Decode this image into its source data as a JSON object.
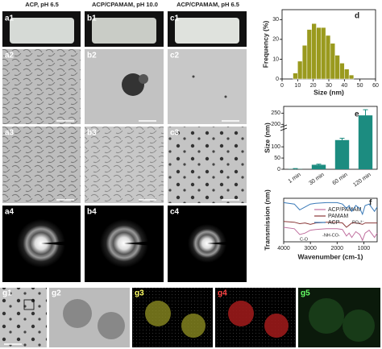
{
  "headers": [
    "ACP, pH 6.5",
    "ACP/CPAMAM, pH 10.0",
    "ACP/CPAMAM, pH 6.5"
  ],
  "panel_labels": [
    "a1",
    "b1",
    "c1",
    "a2",
    "b2",
    "c2",
    "a3",
    "b3",
    "c3",
    "a4",
    "b4",
    "c4",
    "g1",
    "g2",
    "g3",
    "g4",
    "g5"
  ],
  "chart_data": [
    {
      "type": "histogram",
      "label": "d",
      "x_label": "Size (nm)",
      "y_label": "Frequency (%)",
      "color": "#9a9a1e",
      "bins": [
        7,
        10,
        13,
        16,
        19,
        22,
        25,
        28,
        31,
        34,
        37,
        40,
        43,
        46
      ],
      "values": [
        3,
        9,
        17,
        25,
        28,
        26,
        26,
        22,
        18,
        12,
        8,
        5,
        2
      ],
      "xlim": [
        0,
        60
      ],
      "xticks": [
        0,
        10,
        20,
        30,
        40,
        50,
        60
      ],
      "ylim": [
        0,
        35
      ],
      "yticks": [
        0,
        10,
        20,
        30
      ]
    },
    {
      "type": "bar",
      "label": "e",
      "y_label": "Size (nm)",
      "color": "#1c8c80",
      "categories": [
        "1 min",
        "30 min",
        "60 min",
        "120 min"
      ],
      "values": [
        1,
        20,
        130,
        240
      ],
      "errors": [
        2,
        3,
        8,
        25
      ],
      "ylim": [
        0,
        280
      ],
      "yticks": [
        0,
        50,
        100,
        200,
        250
      ]
    },
    {
      "type": "line",
      "label": "f",
      "x_label": "Wavenumber (cm-1)",
      "y_label": "Transmission (nm)",
      "x": [
        4000,
        3600,
        3400,
        3200,
        3000,
        2800,
        2400,
        2000,
        1800,
        1650,
        1550,
        1450,
        1300,
        1150,
        1050,
        950,
        800,
        600,
        500
      ],
      "xlim": [
        4000,
        500
      ],
      "xticks": [
        4000,
        3000,
        2000,
        1000
      ],
      "ylim": [
        0,
        3
      ],
      "series": [
        {
          "name": "ACP/PAMAM",
          "color": "#c0709f",
          "values": [
            1.0,
            0.9,
            0.5,
            0.6,
            0.8,
            0.85,
            0.9,
            0.9,
            0.85,
            0.4,
            0.6,
            0.3,
            0.7,
            0.5,
            0.1,
            0.6,
            0.8,
            0.3,
            0.6
          ]
        },
        {
          "name": "PAMAM",
          "color": "#8b3a3a",
          "values": [
            1.4,
            1.35,
            1.25,
            1.3,
            1.2,
            1.3,
            1.35,
            1.35,
            1.3,
            1.0,
            1.15,
            1.3,
            1.3,
            1.25,
            1.2,
            1.3,
            1.3,
            1.3,
            1.3
          ]
        },
        {
          "name": "ACP",
          "color": "#3a7ab8",
          "values": [
            2.7,
            2.6,
            2.2,
            2.4,
            2.6,
            2.65,
            2.7,
            2.7,
            2.6,
            2.3,
            2.5,
            2.1,
            2.5,
            2.3,
            1.9,
            2.5,
            2.6,
            2.1,
            2.4
          ]
        }
      ],
      "annotations": [
        "C-O",
        "-NH-CO-",
        "PO₄³⁻"
      ]
    }
  ]
}
